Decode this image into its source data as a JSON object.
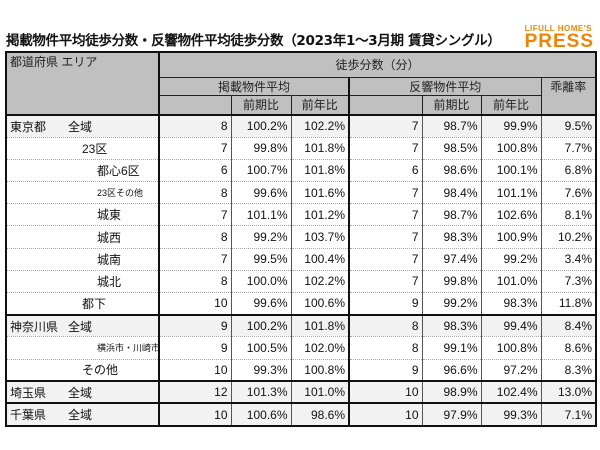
{
  "title": "掲載物件平均徒歩分数・反響物件平均徒歩分数（2023年1〜3月期 賃貸シングル）",
  "logo": {
    "line1": "LIFULL HOME'S",
    "line2": "PRESS",
    "color": "#f08300"
  },
  "header": {
    "area": "都道府県 エリア",
    "walk": "徒歩分数（分）",
    "listed": "掲載物件平均",
    "response": "反響物件平均",
    "gap": "乖離率",
    "qoq": "前期比",
    "yoy": "前年比"
  },
  "rows": [
    {
      "pref": "東京都",
      "area": "全域",
      "v": [
        "8",
        "100.2%",
        "102.2%",
        "7",
        "98.7%",
        "99.9%",
        "9.5%"
      ]
    },
    {
      "pref": "",
      "area": "23区",
      "v": [
        "7",
        "99.8%",
        "101.8%",
        "7",
        "98.5%",
        "100.8%",
        "7.7%"
      ]
    },
    {
      "pref": "",
      "area": "都心6区",
      "v": [
        "6",
        "100.7%",
        "101.8%",
        "6",
        "98.6%",
        "100.1%",
        "6.8%"
      ]
    },
    {
      "pref": "",
      "area": "23区その他",
      "v": [
        "8",
        "99.6%",
        "101.6%",
        "7",
        "98.4%",
        "101.1%",
        "7.6%"
      ]
    },
    {
      "pref": "",
      "area": "城東",
      "v": [
        "7",
        "101.1%",
        "101.2%",
        "7",
        "98.7%",
        "102.6%",
        "8.1%"
      ]
    },
    {
      "pref": "",
      "area": "城西",
      "v": [
        "8",
        "99.2%",
        "103.7%",
        "7",
        "98.3%",
        "100.9%",
        "10.2%"
      ]
    },
    {
      "pref": "",
      "area": "城南",
      "v": [
        "7",
        "99.5%",
        "100.4%",
        "7",
        "97.4%",
        "99.2%",
        "3.4%"
      ]
    },
    {
      "pref": "",
      "area": "城北",
      "v": [
        "8",
        "100.0%",
        "102.2%",
        "7",
        "99.8%",
        "101.0%",
        "7.3%"
      ]
    },
    {
      "pref": "",
      "area": "都下",
      "v": [
        "10",
        "99.6%",
        "100.6%",
        "9",
        "99.2%",
        "98.3%",
        "11.8%"
      ]
    },
    {
      "pref": "神奈川県",
      "area": "全域",
      "v": [
        "9",
        "100.2%",
        "101.8%",
        "8",
        "98.3%",
        "99.4%",
        "8.4%"
      ]
    },
    {
      "pref": "",
      "area": "横浜市・川崎市",
      "v": [
        "9",
        "100.5%",
        "102.0%",
        "8",
        "99.1%",
        "100.8%",
        "8.6%"
      ]
    },
    {
      "pref": "",
      "area": "その他",
      "v": [
        "10",
        "99.3%",
        "100.8%",
        "9",
        "96.6%",
        "97.2%",
        "8.3%"
      ]
    },
    {
      "pref": "埼玉県",
      "area": "全域",
      "v": [
        "12",
        "101.3%",
        "101.0%",
        "10",
        "98.9%",
        "102.4%",
        "13.0%"
      ]
    },
    {
      "pref": "千葉県",
      "area": "全域",
      "v": [
        "10",
        "100.6%",
        "98.6%",
        "10",
        "97.9%",
        "99.3%",
        "7.1%"
      ]
    }
  ]
}
